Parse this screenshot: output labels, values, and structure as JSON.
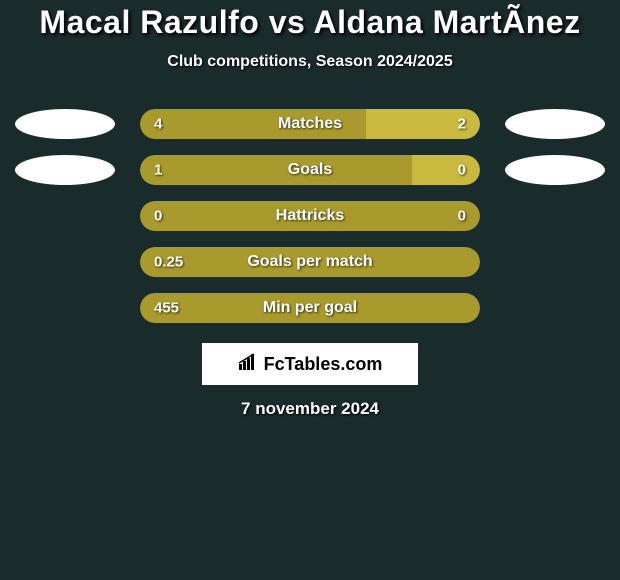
{
  "title": "Macal Razulfo vs Aldana MartÃ­nez",
  "subtitle": "Club competitions, Season 2024/2025",
  "colors": {
    "background": "#1a2b2b",
    "ellipse": "#ffffff",
    "bar_left": "#a99a2e",
    "bar_right": "#c9b93f",
    "text": "#ffffff"
  },
  "bars": [
    {
      "label": "Matches",
      "left_value": "4",
      "right_value": "2",
      "left_width_pct": 66.6,
      "right_width_pct": 33.4,
      "left_color": "#a99a2e",
      "right_color": "#c9b93f",
      "show_left_ellipse": true,
      "show_right_ellipse": true
    },
    {
      "label": "Goals",
      "left_value": "1",
      "right_value": "0",
      "left_width_pct": 80,
      "right_width_pct": 20,
      "left_color": "#a99a2e",
      "right_color": "#c9b93f",
      "show_left_ellipse": true,
      "show_right_ellipse": true
    },
    {
      "label": "Hattricks",
      "left_value": "0",
      "right_value": "0",
      "left_width_pct": 100,
      "right_width_pct": 0,
      "left_color": "#a99a2e",
      "right_color": "#c9b93f",
      "show_left_ellipse": false,
      "show_right_ellipse": false
    },
    {
      "label": "Goals per match",
      "left_value": "0.25",
      "right_value": "",
      "left_width_pct": 100,
      "right_width_pct": 0,
      "left_color": "#a99a2e",
      "right_color": "#c9b93f",
      "show_left_ellipse": false,
      "show_right_ellipse": false
    },
    {
      "label": "Min per goal",
      "left_value": "455",
      "right_value": "",
      "left_width_pct": 100,
      "right_width_pct": 0,
      "left_color": "#a99a2e",
      "right_color": "#c9b93f",
      "show_left_ellipse": false,
      "show_right_ellipse": false
    }
  ],
  "logo": {
    "text": "FcTables.com",
    "icon": "chart-bar-icon"
  },
  "date": "7 november 2024"
}
